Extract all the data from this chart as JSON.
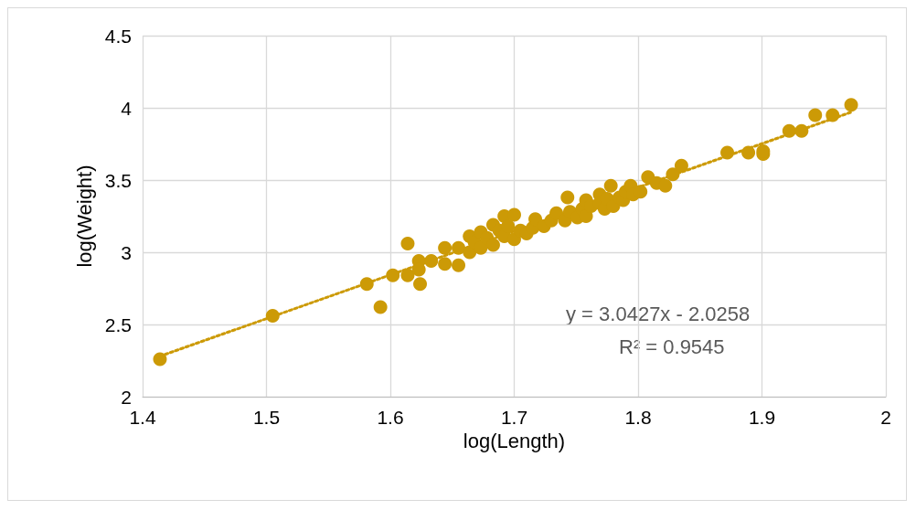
{
  "chart_data": {
    "type": "scatter",
    "xlabel": "log(Length)",
    "ylabel": "log(Weight)",
    "xlim": [
      1.4,
      2
    ],
    "xticks": [
      1.4,
      1.5,
      1.6,
      1.7,
      1.8,
      1.9,
      2
    ],
    "ylim": [
      2,
      4.5
    ],
    "yticks": [
      2,
      2.5,
      3,
      3.5,
      4,
      4.5
    ],
    "grid": true,
    "marker": "circle",
    "annotations": [
      "y = 3.0427x - 2.0258",
      "R² = 0.9545"
    ],
    "series": [
      {
        "color": "#cc9a06",
        "x": [
          1.414,
          1.505,
          1.581,
          1.592,
          1.602,
          1.614,
          1.614,
          1.623,
          1.623,
          1.624,
          1.633,
          1.644,
          1.644,
          1.655,
          1.655,
          1.664,
          1.664,
          1.668,
          1.673,
          1.673,
          1.678,
          1.683,
          1.683,
          1.688,
          1.692,
          1.692,
          1.695,
          1.7,
          1.7,
          1.705,
          1.71,
          1.715,
          1.717,
          1.724,
          1.73,
          1.734,
          1.741,
          1.743,
          1.745,
          1.751,
          1.755,
          1.758,
          1.758,
          1.762,
          1.769,
          1.769,
          1.773,
          1.775,
          1.778,
          1.78,
          1.785,
          1.788,
          1.79,
          1.794,
          1.796,
          1.802,
          1.808,
          1.815,
          1.822,
          1.828,
          1.835,
          1.872,
          1.889,
          1.901,
          1.901,
          1.922,
          1.932,
          1.943,
          1.957,
          1.972
        ],
        "values": [
          2.26,
          2.56,
          2.78,
          2.62,
          2.84,
          3.06,
          2.84,
          2.94,
          2.88,
          2.78,
          2.94,
          3.03,
          2.92,
          3.03,
          2.91,
          3.11,
          3.0,
          3.07,
          3.14,
          3.03,
          3.1,
          3.19,
          3.05,
          3.15,
          3.25,
          3.11,
          3.18,
          3.26,
          3.09,
          3.15,
          3.13,
          3.17,
          3.23,
          3.18,
          3.22,
          3.27,
          3.22,
          3.38,
          3.28,
          3.24,
          3.3,
          3.36,
          3.25,
          3.32,
          3.4,
          3.34,
          3.3,
          3.37,
          3.46,
          3.32,
          3.38,
          3.36,
          3.42,
          3.46,
          3.4,
          3.42,
          3.52,
          3.48,
          3.46,
          3.54,
          3.6,
          3.69,
          3.69,
          3.68,
          3.7,
          3.84,
          3.84,
          3.95,
          3.95,
          4.02
        ]
      },
      {
        "type": "line",
        "color": "#cc9a06",
        "line_style": "dotted",
        "marker": "none",
        "x": [
          1.414,
          1.972
        ],
        "values": [
          2.28,
          3.97
        ]
      }
    ]
  }
}
